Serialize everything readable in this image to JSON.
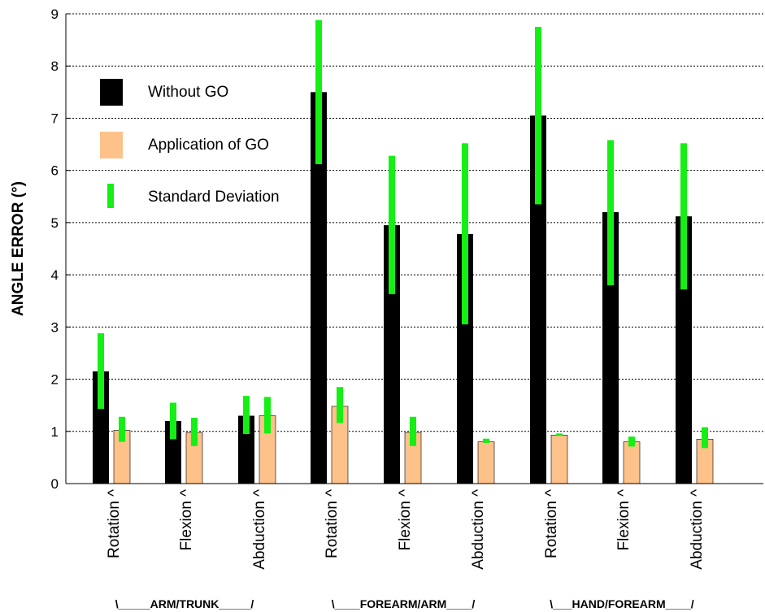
{
  "chart_data": {
    "type": "bar",
    "ylabel": "ANGLE ERROR (°)",
    "ylim": [
      0,
      9
    ],
    "yticks": [
      "0",
      "1",
      "2",
      "3",
      "4",
      "5",
      "6",
      "7",
      "8",
      "9"
    ],
    "grid": true,
    "legend_position": "top-left",
    "categories": [
      "Rotation",
      "Flexion",
      "Abduction",
      "Rotation",
      "Flexion",
      "Abduction",
      "Rotation",
      "Flexion",
      "Abduction"
    ],
    "category_marks": [
      "^",
      "^",
      "^",
      "^",
      "^",
      "^",
      "^",
      "^",
      "^"
    ],
    "groups": [
      {
        "label": "\\_____ARM/TRUNK_____/"
      },
      {
        "label": "\\____FOREARM/ARM____/"
      },
      {
        "label": "\\___HAND/FOREARM____/"
      }
    ],
    "series": [
      {
        "name": "Without GO",
        "color": "#000000",
        "values": [
          2.15,
          1.2,
          1.3,
          7.5,
          4.95,
          4.78,
          7.05,
          5.2,
          5.12
        ],
        "sd_low": [
          1.43,
          0.85,
          0.95,
          6.12,
          3.63,
          3.05,
          5.35,
          3.8,
          3.72
        ],
        "sd_high": [
          2.88,
          1.55,
          1.68,
          8.88,
          6.28,
          6.52,
          8.75,
          6.58,
          6.52
        ]
      },
      {
        "name": "Application of GO",
        "color": "#FDC18A",
        "values": [
          1.02,
          0.98,
          1.3,
          1.48,
          0.98,
          0.8,
          0.93,
          0.8,
          0.85
        ],
        "sd_low": [
          0.8,
          0.72,
          0.96,
          1.16,
          0.72,
          0.78,
          0.93,
          0.71,
          0.68
        ],
        "sd_high": [
          1.28,
          1.26,
          1.66,
          1.85,
          1.28,
          0.86,
          0.96,
          0.9,
          1.08
        ]
      }
    ],
    "sd_name": "Standard Deviation",
    "sd_color": "#14F014"
  }
}
